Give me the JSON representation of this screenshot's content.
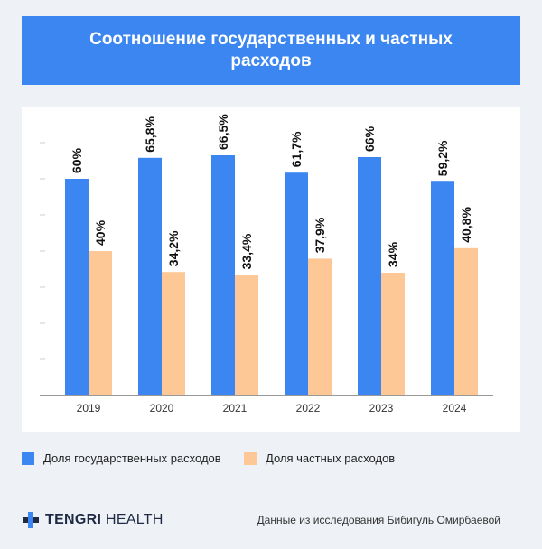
{
  "header": {
    "title": "Соотношение государственных и частных расходов"
  },
  "colors": {
    "header_bg": "#3b86f0",
    "public": "#3b86f0",
    "private": "#fdc896"
  },
  "chart_data": {
    "type": "bar",
    "categories": [
      "2019",
      "2020",
      "2021",
      "2022",
      "2023",
      "2024"
    ],
    "series": [
      {
        "name": "Доля государственных расходов",
        "color": "#3b86f0",
        "values": [
          60,
          65.8,
          66.5,
          61.7,
          66,
          59.2
        ],
        "labels": [
          "60%",
          "65,8%",
          "66,5%",
          "61,7%",
          "66%",
          "59,2%"
        ]
      },
      {
        "name": "Доля частных расходов",
        "color": "#fdc896",
        "values": [
          40,
          34.2,
          33.4,
          37.9,
          34,
          40.8
        ],
        "labels": [
          "40%",
          "34,2%",
          "33,4%",
          "37,9%",
          "34%",
          "40,8%"
        ]
      }
    ],
    "ylim": [
      0,
      80
    ],
    "grid": false,
    "legend_position": "bottom"
  },
  "legend": {
    "public_label": "Доля государственных расходов",
    "private_label": "Доля частных расходов"
  },
  "footer": {
    "logo_bold": "TENGRI",
    "logo_light": " HEALTH",
    "logo_icon": "plus-cross-icon",
    "source": "Данные из исследования Бибигуль Омирбаевой"
  }
}
